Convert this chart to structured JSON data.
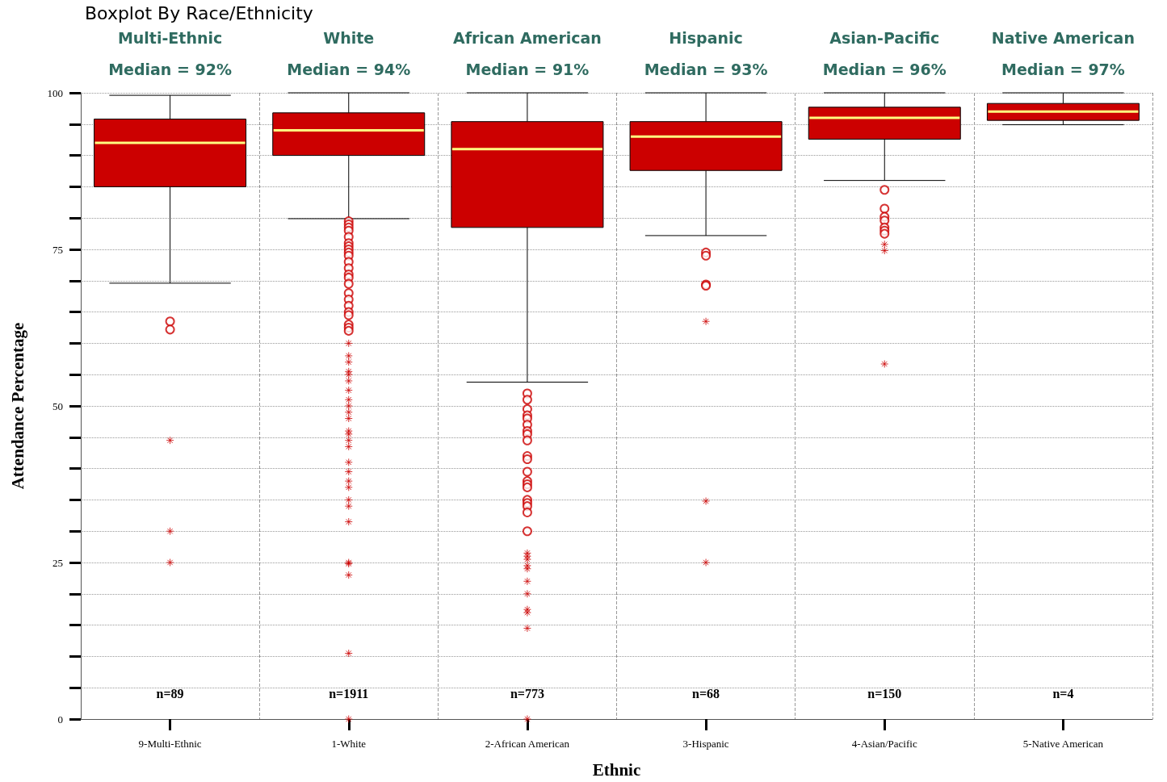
{
  "chart_data": {
    "type": "box",
    "title": "Boxplot By Race/Ethnicity",
    "xlabel": "Ethnic",
    "ylabel": "Attendance Percentage",
    "categories": [
      "9-Multi-Ethnic",
      "1-White",
      "2-African American",
      "3-Hispanic",
      "4-Asian/Pacific",
      "5-Native American"
    ],
    "ylim": [
      0,
      100
    ],
    "yticks": [
      0,
      {
        "value": 5,
        "label": null
      },
      {
        "value": 10,
        "label": null
      },
      {
        "value": 15,
        "label": null
      },
      {
        "value": 20,
        "label": null
      },
      25,
      {
        "value": 30,
        "label": null
      },
      {
        "value": 35,
        "label": null
      },
      {
        "value": 40,
        "label": null
      },
      {
        "value": 45,
        "label": null
      },
      50,
      {
        "value": 55,
        "label": null
      },
      {
        "value": 60,
        "label": null
      },
      {
        "value": 65,
        "label": null
      },
      {
        "value": 70,
        "label": null
      },
      75,
      {
        "value": 80,
        "label": null
      },
      {
        "value": 85,
        "label": null
      },
      {
        "value": 90,
        "label": null
      },
      {
        "value": 95,
        "label": null
      },
      100
    ],
    "grid": true,
    "series": [
      {
        "color": "#cc0000",
        "boxes": [
          {
            "low": 69.6,
            "q1": 85,
            "median": 92,
            "q3": 95.8,
            "high": 99.6,
            "outliers": [
              63.5,
              62.2
            ]
          },
          {
            "low": 79.9,
            "q1": 90,
            "median": 94,
            "q3": 96.8,
            "high": 100,
            "outliers": [
              79.5,
              79,
              78.5,
              78,
              77,
              76,
              75.5,
              75,
              74.5,
              74,
              73,
              72,
              71,
              70.5,
              69.5,
              68,
              67,
              66,
              65,
              64.5,
              63,
              62.5,
              62
            ]
          },
          {
            "low": 53.8,
            "q1": 78.5,
            "median": 91,
            "q3": 95.4,
            "high": 100,
            "outliers": [
              52,
              51,
              49.5,
              48.5,
              48,
              47,
              46,
              45.5,
              44.5,
              42,
              41.5,
              39.5,
              38,
              37.5,
              37,
              35,
              34.5,
              34,
              33,
              30
            ]
          },
          {
            "low": 77.2,
            "q1": 87.6,
            "median": 93,
            "q3": 95.4,
            "high": 100,
            "outliers": [
              74.5,
              74,
              69.4,
              69.2
            ]
          },
          {
            "low": 86,
            "q1": 92.6,
            "median": 96,
            "q3": 97.7,
            "high": 100,
            "outliers": [
              84.5,
              81.5,
              80.2,
              79.6,
              78.5,
              78,
              77.5
            ]
          },
          {
            "low": 94.9,
            "q1": 95.6,
            "median": 97,
            "q3": 98.3,
            "high": 100
          }
        ]
      },
      {
        "type": "scatter",
        "color": "#cc0000",
        "marker": "cross",
        "x": [
          "9-Multi-Ethnic",
          "9-Multi-Ethnic",
          "9-Multi-Ethnic",
          "1-White",
          "1-White",
          "1-White",
          "1-White",
          "1-White",
          "1-White",
          "1-White",
          "1-White",
          "1-White",
          "1-White",
          "1-White",
          "1-White",
          "1-White",
          "1-White",
          "1-White",
          "1-White",
          "1-White",
          "1-White",
          "1-White",
          "1-White",
          "1-White",
          "1-White",
          "1-White",
          "1-White",
          "1-White",
          "1-White",
          "1-White",
          "2-African American",
          "2-African American",
          "2-African American",
          "2-African American",
          "2-African American",
          "2-African American",
          "2-African American",
          "2-African American",
          "2-African American",
          "2-African American",
          "2-African American",
          "3-Hispanic",
          "3-Hispanic",
          "3-Hispanic",
          "4-Asian/Pacific",
          "4-Asian/Pacific",
          "4-Asian/Pacific"
        ],
        "values": [
          44.5,
          30,
          25,
          60,
          58,
          57,
          55.5,
          55,
          54,
          52.5,
          51,
          50,
          49,
          48,
          46,
          45.5,
          44.5,
          43.5,
          41,
          39.5,
          38,
          37,
          35,
          34,
          31.5,
          25,
          24.8,
          23,
          10.5,
          0,
          26.5,
          26,
          25.5,
          24.5,
          24,
          22,
          20,
          17.5,
          17,
          14.5,
          0,
          63.5,
          34.8,
          25,
          75.8,
          74.8,
          56.7
        ]
      }
    ],
    "annotations": [
      "Multi-Ethnic",
      "Median = 92%",
      "White",
      "Median = 94%",
      "African American",
      "Median = 91%",
      "Hispanic",
      "Median = 93%",
      "Asian-Pacific",
      "Median = 96%",
      "Native American",
      "Median = 97%",
      "n=89",
      "n=1911",
      "n=773",
      "n=68",
      "n=150",
      "n=4"
    ]
  }
}
